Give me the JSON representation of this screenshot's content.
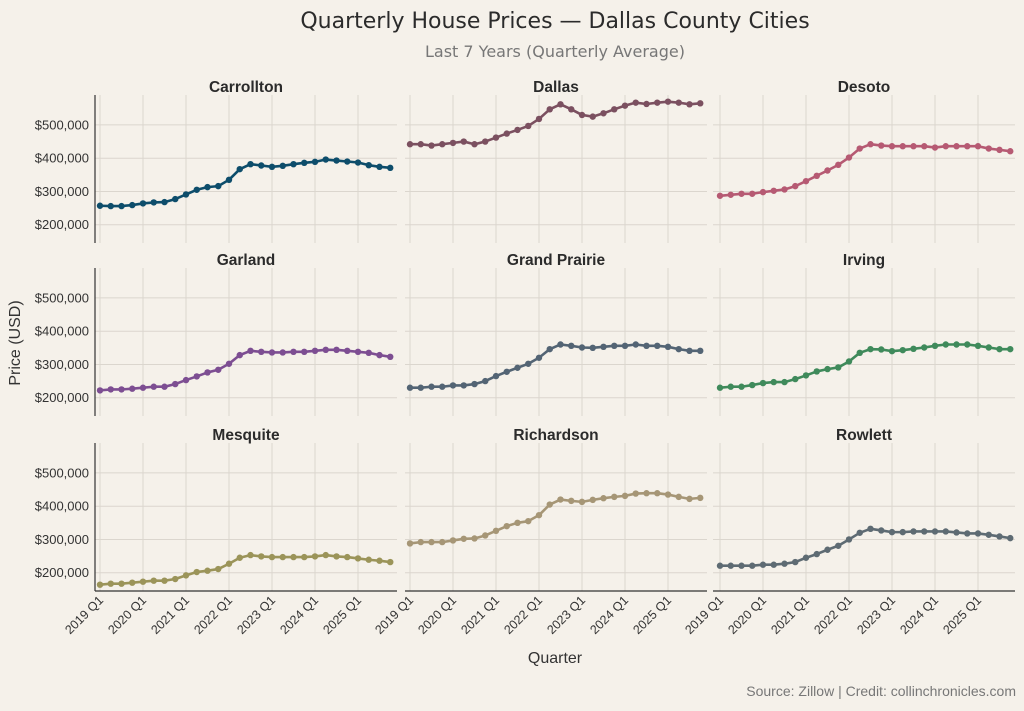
{
  "chart_data": {
    "type": "line",
    "layout": "facet-grid 3x3, shared axes",
    "title": "Quarterly House Prices — Dallas County Cities",
    "subtitle": "Last 7 Years (Quarterly Average)",
    "xlabel": "Quarter",
    "ylabel": "Price (USD)",
    "source": "Source: Zillow | Credit: collinchronicles.com",
    "ylim": [
      145000,
      590000
    ],
    "yticks": [
      200000,
      300000,
      400000,
      500000
    ],
    "ytick_labels": [
      "$200,000",
      "$300,000",
      "$400,000",
      "$500,000"
    ],
    "xtick_labels": [
      "2019 Q1",
      "2020 Q1",
      "2021 Q1",
      "2022 Q1",
      "2023 Q1",
      "2024 Q1",
      "2025 Q1"
    ],
    "x": [
      "2019 Q1",
      "2019 Q2",
      "2019 Q3",
      "2019 Q4",
      "2020 Q1",
      "2020 Q2",
      "2020 Q3",
      "2020 Q4",
      "2021 Q1",
      "2021 Q2",
      "2021 Q3",
      "2021 Q4",
      "2022 Q1",
      "2022 Q2",
      "2022 Q3",
      "2022 Q4",
      "2023 Q1",
      "2023 Q2",
      "2023 Q3",
      "2023 Q4",
      "2024 Q1",
      "2024 Q2",
      "2024 Q3",
      "2024 Q4",
      "2025 Q1",
      "2025 Q2",
      "2025 Q3",
      "2025 Q4"
    ],
    "grid": true,
    "markers": true,
    "series": [
      {
        "name": "Carrollton",
        "color": "#0d4d6b",
        "values": [
          257000,
          256000,
          256000,
          259000,
          264000,
          267000,
          268000,
          277000,
          291000,
          305000,
          313000,
          316000,
          335000,
          367000,
          382000,
          378000,
          374000,
          377000,
          382000,
          386000,
          389000,
          396000,
          393000,
          390000,
          387000,
          379000,
          374000,
          371000
        ]
      },
      {
        "name": "Dallas",
        "color": "#7b5060",
        "values": [
          442000,
          442000,
          438000,
          442000,
          446000,
          450000,
          442000,
          450000,
          462000,
          474000,
          485000,
          497000,
          518000,
          547000,
          562000,
          547000,
          530000,
          525000,
          535000,
          547000,
          558000,
          567000,
          563000,
          567000,
          570000,
          567000,
          562000,
          565000
        ]
      },
      {
        "name": "Desoto",
        "color": "#b65a73",
        "values": [
          287000,
          290000,
          293000,
          293000,
          298000,
          302000,
          306000,
          316000,
          331000,
          347000,
          363000,
          380000,
          402000,
          429000,
          442000,
          438000,
          436000,
          436000,
          436000,
          436000,
          432000,
          436000,
          436000,
          436000,
          436000,
          429000,
          425000,
          421000
        ]
      },
      {
        "name": "Garland",
        "color": "#7d4e92",
        "values": [
          222000,
          225000,
          225000,
          227000,
          230000,
          233000,
          233000,
          241000,
          253000,
          264000,
          276000,
          284000,
          302000,
          328000,
          341000,
          338000,
          336000,
          336000,
          338000,
          338000,
          341000,
          344000,
          344000,
          341000,
          338000,
          335000,
          328000,
          323000
        ]
      },
      {
        "name": "Grand Prairie",
        "color": "#536474",
        "values": [
          230000,
          230000,
          233000,
          233000,
          237000,
          237000,
          241000,
          250000,
          265000,
          278000,
          290000,
          302000,
          320000,
          346000,
          360000,
          356000,
          351000,
          350000,
          353000,
          356000,
          356000,
          360000,
          356000,
          356000,
          353000,
          346000,
          341000,
          341000
        ]
      },
      {
        "name": "Irving",
        "color": "#3f8a5b",
        "values": [
          230000,
          233000,
          233000,
          238000,
          244000,
          247000,
          247000,
          256000,
          267000,
          279000,
          286000,
          291000,
          309000,
          335000,
          346000,
          345000,
          340000,
          343000,
          347000,
          351000,
          356000,
          360000,
          360000,
          360000,
          356000,
          351000,
          346000,
          346000
        ]
      },
      {
        "name": "Mesquite",
        "color": "#9b9459",
        "values": [
          164000,
          167000,
          167000,
          170000,
          173000,
          176000,
          176000,
          181000,
          192000,
          202000,
          206000,
          211000,
          227000,
          245000,
          253000,
          249000,
          247000,
          247000,
          247000,
          247000,
          249000,
          253000,
          249000,
          247000,
          243000,
          239000,
          236000,
          232000
        ]
      },
      {
        "name": "Richardson",
        "color": "#a69676",
        "values": [
          288000,
          292000,
          292000,
          292000,
          297000,
          302000,
          303000,
          312000,
          326000,
          340000,
          350000,
          355000,
          373000,
          405000,
          420000,
          416000,
          413000,
          419000,
          424000,
          428000,
          431000,
          438000,
          439000,
          439000,
          435000,
          428000,
          422000,
          425000
        ]
      },
      {
        "name": "Rowlett",
        "color": "#5e6b73",
        "values": [
          221000,
          221000,
          221000,
          221000,
          224000,
          224000,
          227000,
          232000,
          245000,
          256000,
          269000,
          281000,
          300000,
          320000,
          332000,
          327000,
          322000,
          322000,
          324000,
          324000,
          324000,
          324000,
          321000,
          318000,
          318000,
          314000,
          309000,
          304000
        ]
      }
    ]
  },
  "colors": {
    "background": "#f5f1ea",
    "grid": "#dbd6ce",
    "axis": "#333333",
    "text": "#2b2b2b",
    "muted": "#777777"
  }
}
